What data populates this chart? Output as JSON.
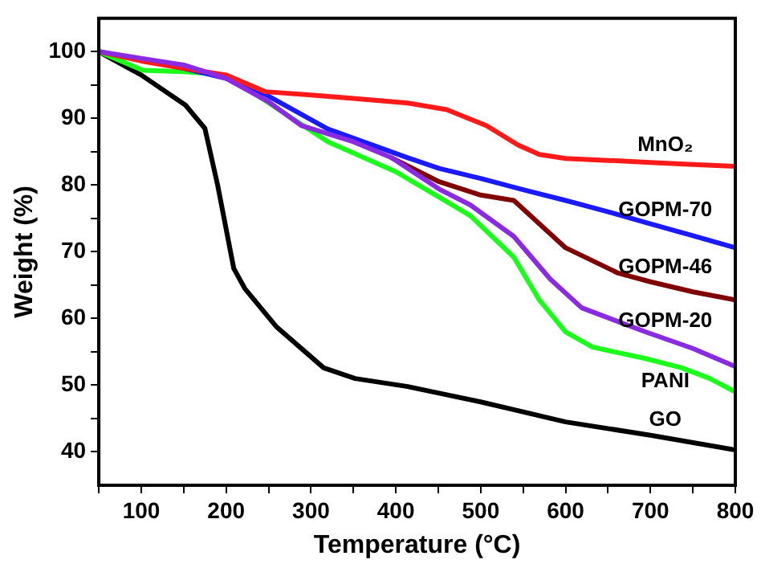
{
  "chart_data": {
    "type": "line",
    "xlabel": "Temperature (°C)",
    "ylabel": "Weight (%)",
    "xlim": [
      50,
      800
    ],
    "ylim": [
      35,
      105
    ],
    "xticks": [
      {
        "value": 50,
        "label": null
      },
      100,
      {
        "value": 150,
        "label": null
      },
      200,
      {
        "value": 250,
        "label": null
      },
      300,
      {
        "value": 350,
        "label": null
      },
      400,
      {
        "value": 450,
        "label": null
      },
      500,
      {
        "value": 550,
        "label": null
      },
      600,
      {
        "value": 650,
        "label": null
      },
      700,
      {
        "value": 750,
        "label": null
      },
      800
    ],
    "yticks": [
      40,
      {
        "value": 45,
        "label": null
      },
      50,
      {
        "value": 55,
        "label": null
      },
      60,
      {
        "value": 65,
        "label": null
      },
      70,
      {
        "value": 75,
        "label": null
      },
      80,
      {
        "value": 85,
        "label": null
      },
      90,
      {
        "value": 95,
        "label": null
      },
      100
    ],
    "grid": false,
    "legend": false,
    "marker": "none",
    "line_style": "solid",
    "series": [
      {
        "name": "MnO₂",
        "color": "#ff1a1a",
        "x": [
          50,
          100,
          150,
          200,
          246,
          300,
          350,
          414,
          460,
          507,
          544,
          569,
          600,
          650,
          700,
          750,
          800
        ],
        "values": [
          100,
          98.6,
          97.5,
          96.5,
          94,
          93.5,
          93,
          92.3,
          91.3,
          88.9,
          86,
          84.6,
          84,
          83.7,
          83.4,
          83.1,
          82.8
        ]
      },
      {
        "name": "GOPM-70",
        "color": "#1a1aff",
        "x": [
          50,
          100,
          150,
          200,
          246,
          320,
          414,
          451,
          500,
          550,
          600,
          650,
          700,
          750,
          800
        ],
        "values": [
          100,
          98.8,
          97.5,
          96,
          93.6,
          88.4,
          84.1,
          82.5,
          81,
          79.3,
          77.7,
          76,
          74.2,
          72.4,
          70.6
        ]
      },
      {
        "name": "GOPM-46",
        "color": "#800000",
        "x": [
          395,
          451,
          500,
          539,
          600,
          662,
          700,
          750,
          800
        ],
        "values": [
          84.1,
          80.5,
          78.5,
          77.7,
          70.6,
          66.8,
          65.5,
          64,
          62.8
        ]
      },
      {
        "name": "GOPM-20",
        "color": "#8a2be2",
        "x": [
          50,
          100,
          150,
          200,
          250,
          289,
          350,
          395,
          451,
          488,
          539,
          582,
          619,
          694,
          750,
          800
        ],
        "values": [
          100,
          99,
          98,
          96,
          92.5,
          88.9,
          86.5,
          84.1,
          79.4,
          77,
          72.3,
          65.9,
          61.6,
          58,
          55.5,
          52.8
        ]
      },
      {
        "name": "PANI",
        "color": "#1aff1a",
        "x": [
          50,
          102,
          150,
          200,
          214,
          227,
          260,
          320,
          400,
          451,
          488,
          539,
          569,
          600,
          632,
          694,
          737,
          770,
          800
        ],
        "values": [
          100,
          97.2,
          97,
          96.5,
          95.5,
          94.3,
          91.5,
          86.5,
          82,
          78.2,
          75.4,
          69.2,
          62.8,
          58,
          55.7,
          54,
          52.6,
          51,
          49
        ]
      },
      {
        "name": "GO",
        "color": "#000000",
        "x": [
          50,
          100,
          152,
          175,
          190,
          209,
          222,
          259,
          315,
          352,
          414,
          451,
          500,
          600,
          700,
          800
        ],
        "values": [
          100,
          96.5,
          92,
          88.5,
          80,
          67.5,
          64.5,
          58.8,
          52.6,
          51,
          49.8,
          48.8,
          47.5,
          44.5,
          42.5,
          40.3
        ]
      }
    ]
  }
}
